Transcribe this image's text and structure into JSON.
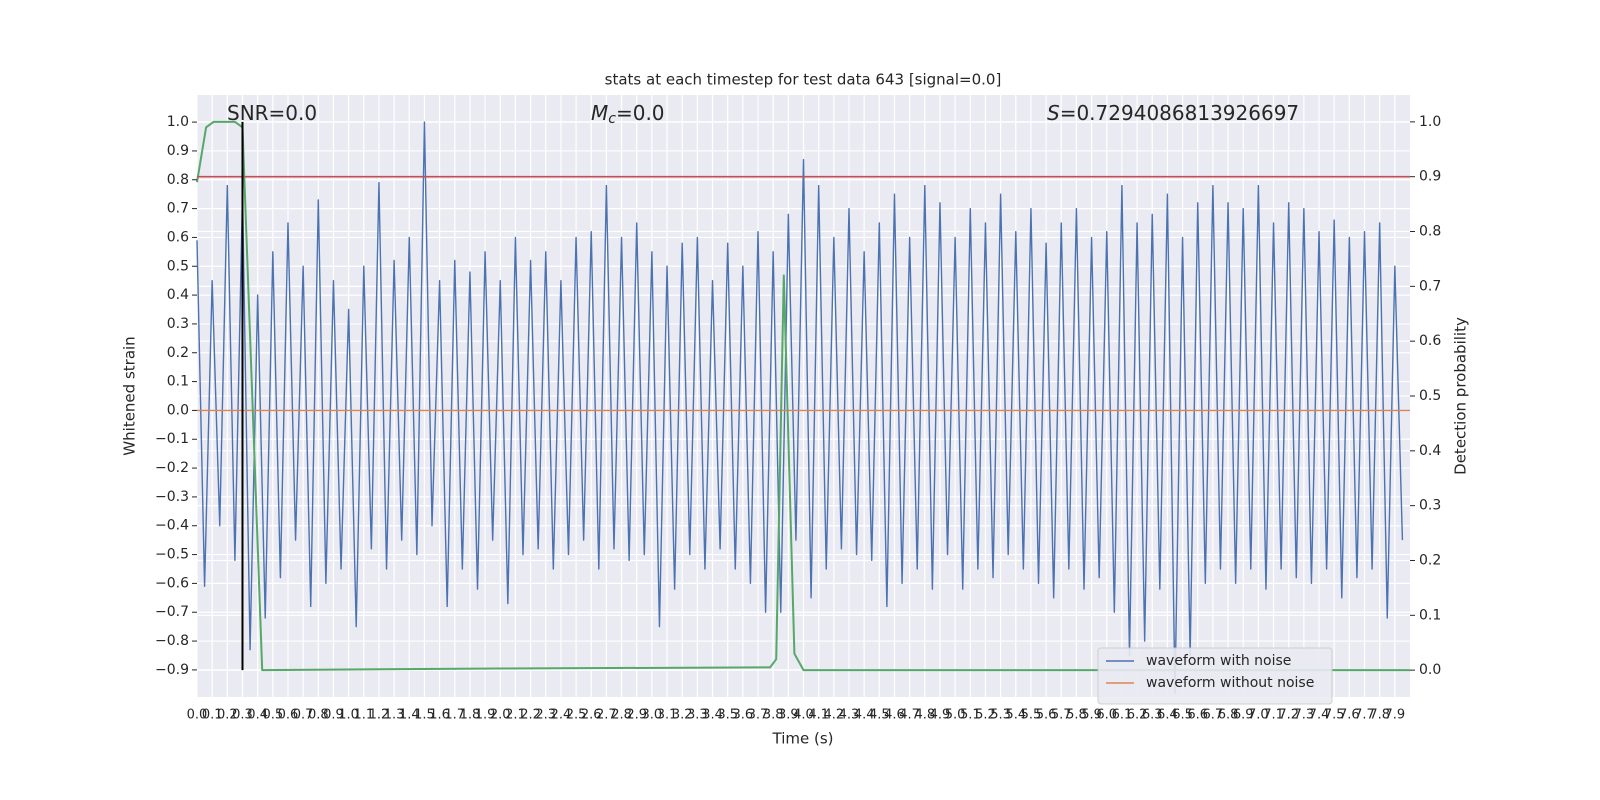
{
  "chart_data": {
    "type": "line",
    "title": "stats at each timestep for test data 643 [signal=0.0]",
    "annotations": [
      {
        "text": "SNR=0.0"
      },
      {
        "symbol": "M",
        "sub": "c",
        "text": "=0.0"
      },
      {
        "symbol": "S",
        "text": "=0.7294086813926697"
      }
    ],
    "xlabel": "Time (s)",
    "ylabel": "Whitened strain",
    "y2label": "Detection probability",
    "xlim": [
      0,
      8
    ],
    "ylim": [
      -0.994,
      1.094
    ],
    "y2lim": [
      -0.049,
      1.049
    ],
    "xticks": [
      {
        "value": 0,
        "label": "0.0"
      },
      0.1,
      0.2,
      0.3,
      0.4,
      0.5,
      0.6,
      0.7,
      0.8,
      0.9,
      {
        "value": 1,
        "label": "1.0"
      },
      1.1,
      1.2,
      1.3,
      1.4,
      1.5,
      1.6,
      1.7,
      1.8,
      1.9,
      {
        "value": 2,
        "label": "2.0"
      },
      2.1,
      2.2,
      2.3,
      2.4,
      2.5,
      2.6,
      2.7,
      2.8,
      2.9,
      {
        "value": 3,
        "label": "3.0"
      },
      3.1,
      3.2,
      3.3,
      3.4,
      3.5,
      3.6,
      3.7,
      3.8,
      3.9,
      {
        "value": 4,
        "label": "4.0"
      },
      4.1,
      4.2,
      4.3,
      4.4,
      4.5,
      4.6,
      4.7,
      4.8,
      4.9,
      {
        "value": 5,
        "label": "5.0"
      },
      5.1,
      5.2,
      5.3,
      5.4,
      5.5,
      5.6,
      5.7,
      5.8,
      5.9,
      {
        "value": 6,
        "label": "6.0"
      },
      6.1,
      6.2,
      6.3,
      6.4,
      6.5,
      6.6,
      6.7,
      6.8,
      6.9,
      {
        "value": 7,
        "label": "7.0"
      },
      7.1,
      7.2,
      7.3,
      7.4,
      7.5,
      7.6,
      7.7,
      7.8,
      7.9
    ],
    "yticks": [
      {
        "value": 1,
        "label": "1.0"
      },
      0.9,
      0.8,
      0.7,
      0.6,
      0.5,
      0.4,
      0.3,
      0.2,
      0.1,
      {
        "value": 0,
        "label": "0.0"
      },
      {
        "value": -0.1,
        "label": "−0.1"
      },
      {
        "value": -0.2,
        "label": "−0.2"
      },
      {
        "value": -0.3,
        "label": "−0.3"
      },
      {
        "value": -0.4,
        "label": "−0.4"
      },
      {
        "value": -0.5,
        "label": "−0.5"
      },
      {
        "value": -0.6,
        "label": "−0.6"
      },
      {
        "value": -0.7,
        "label": "−0.7"
      },
      {
        "value": -0.8,
        "label": "−0.8"
      },
      {
        "value": -0.9,
        "label": "−0.9"
      }
    ],
    "y2ticks": [
      {
        "value": 0,
        "label": "0.0"
      },
      0.1,
      0.2,
      0.3,
      0.4,
      0.5,
      0.6,
      0.7,
      0.8,
      0.9,
      {
        "value": 1,
        "label": "1.0"
      }
    ],
    "grid": true,
    "legend": "lower right",
    "series": [
      {
        "name": "waveform with noise",
        "color": "#4c72b0",
        "x": [
          0,
          0.05,
          0.1,
          0.15,
          0.2,
          0.25,
          0.3,
          0.35,
          0.4,
          0.45,
          0.5,
          0.55,
          0.6,
          0.65,
          0.7,
          0.75,
          0.8,
          0.85,
          0.9,
          0.95,
          1,
          1.05,
          1.1,
          1.15,
          1.2,
          1.25,
          1.3,
          1.35,
          1.4,
          1.45,
          1.5,
          1.55,
          1.6,
          1.65,
          1.7,
          1.75,
          1.8,
          1.85,
          1.9,
          1.95,
          2,
          2.05,
          2.1,
          2.15,
          2.2,
          2.25,
          2.3,
          2.35,
          2.4,
          2.45,
          2.5,
          2.55,
          2.6,
          2.65,
          2.7,
          2.75,
          2.8,
          2.85,
          2.9,
          2.95,
          3,
          3.05,
          3.1,
          3.15,
          3.2,
          3.25,
          3.3,
          3.35,
          3.4,
          3.45,
          3.5,
          3.55,
          3.6,
          3.65,
          3.7,
          3.75,
          3.8,
          3.85,
          3.9,
          3.95,
          4,
          4.05,
          4.1,
          4.15,
          4.2,
          4.25,
          4.3,
          4.35,
          4.4,
          4.45,
          4.5,
          4.55,
          4.6,
          4.65,
          4.7,
          4.75,
          4.8,
          4.85,
          4.9,
          4.95,
          5,
          5.05,
          5.1,
          5.15,
          5.2,
          5.25,
          5.3,
          5.35,
          5.4,
          5.45,
          5.5,
          5.55,
          5.6,
          5.65,
          5.7,
          5.75,
          5.8,
          5.85,
          5.9,
          5.95,
          6,
          6.05,
          6.1,
          6.15,
          6.2,
          6.25,
          6.3,
          6.35,
          6.4,
          6.45,
          6.5,
          6.55,
          6.6,
          6.65,
          6.7,
          6.75,
          6.8,
          6.85,
          6.9,
          6.95,
          7,
          7.05,
          7.1,
          7.15,
          7.2,
          7.25,
          7.3,
          7.35,
          7.4,
          7.45,
          7.5,
          7.55,
          7.6,
          7.65,
          7.7,
          7.75,
          7.8,
          7.85,
          7.9,
          7.95
        ],
        "values": [
          0.59,
          -0.61,
          0.45,
          -0.4,
          0.78,
          -0.52,
          0.75,
          -0.83,
          0.4,
          -0.72,
          0.55,
          -0.58,
          0.65,
          -0.45,
          0.5,
          -0.68,
          0.73,
          -0.6,
          0.45,
          -0.55,
          0.35,
          -0.75,
          0.5,
          -0.48,
          0.79,
          -0.55,
          0.52,
          -0.45,
          0.6,
          -0.5,
          1.0,
          -0.4,
          0.45,
          -0.68,
          0.52,
          -0.55,
          0.48,
          -0.62,
          0.55,
          -0.45,
          0.45,
          -0.67,
          0.6,
          -0.5,
          0.52,
          -0.48,
          0.55,
          -0.55,
          0.45,
          -0.5,
          0.6,
          -0.45,
          0.62,
          -0.55,
          0.78,
          -0.48,
          0.6,
          -0.52,
          0.65,
          -0.5,
          0.55,
          -0.75,
          0.5,
          -0.62,
          0.58,
          -0.5,
          0.6,
          -0.55,
          0.45,
          -0.48,
          0.58,
          -0.55,
          0.5,
          -0.6,
          0.62,
          -0.7,
          0.55,
          -0.7,
          0.68,
          -0.45,
          0.87,
          -0.65,
          0.78,
          -0.55,
          0.6,
          -0.48,
          0.7,
          -0.5,
          0.55,
          -0.52,
          0.65,
          -0.68,
          0.75,
          -0.6,
          0.6,
          -0.55,
          0.78,
          -0.62,
          0.72,
          -0.5,
          0.6,
          -0.62,
          0.7,
          -0.55,
          0.65,
          -0.58,
          0.75,
          -0.5,
          0.62,
          -0.55,
          0.7,
          -0.6,
          0.58,
          -0.65,
          0.65,
          -0.55,
          0.7,
          -0.62,
          0.6,
          -0.58,
          0.62,
          -0.7,
          0.78,
          -0.85,
          0.65,
          -0.8,
          0.68,
          -0.62,
          0.75,
          -0.98,
          0.6,
          -0.85,
          0.72,
          -0.6,
          0.78,
          -0.55,
          0.72,
          -0.6,
          0.7,
          -0.55,
          0.78,
          -0.62,
          0.65,
          -0.55,
          0.72,
          -0.58,
          0.7,
          -0.6,
          0.62,
          -0.55,
          0.66,
          -0.65,
          0.6,
          -0.58,
          0.62,
          -0.55,
          0.65,
          -0.72,
          0.5,
          -0.45
        ]
      },
      {
        "name": "waveform without noise",
        "color": "#dd8452",
        "x": [
          0,
          8
        ],
        "values": [
          0,
          0
        ]
      },
      {
        "color": "#55a868",
        "axis": "y2",
        "x": [
          0,
          0.06,
          0.11,
          0.25,
          0.3,
          0.43,
          2.0,
          3.78,
          3.82,
          3.87,
          3.94,
          4.0,
          8.0
        ],
        "values": [
          0.89,
          0.99,
          1.0,
          1.0,
          0.99,
          0.0,
          0.003,
          0.005,
          0.02,
          0.72,
          0.03,
          0.0,
          0.0
        ]
      }
    ],
    "hline": {
      "y": 0.9,
      "axis": "y2",
      "color": "#c44e52"
    },
    "vline": {
      "x": 0.3,
      "y2range": [
        0,
        1
      ],
      "color": "#000000"
    }
  }
}
